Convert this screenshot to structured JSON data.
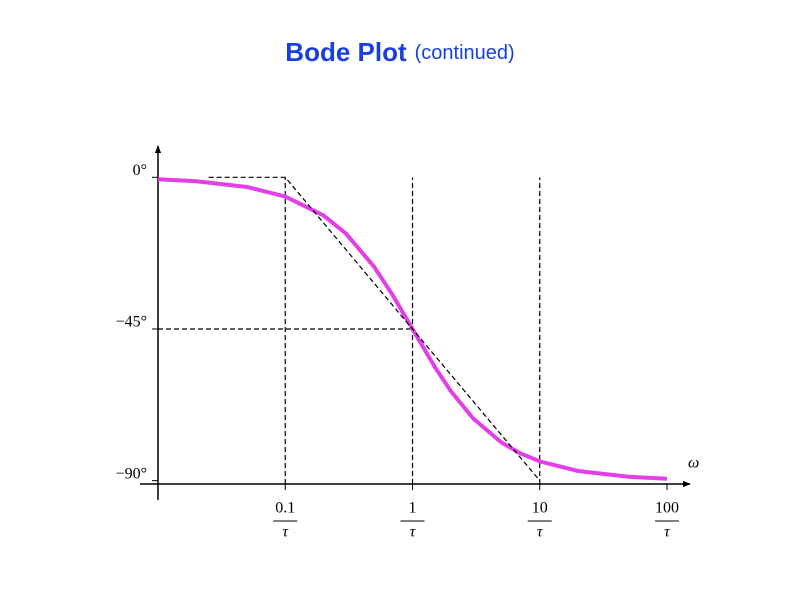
{
  "chart_data": {
    "type": "line",
    "title": "Bode Plot",
    "subtitle": "(continued)",
    "x_label": "ω",
    "log_x": true,
    "xlim": [
      0.01,
      100
    ],
    "xticks": [
      0.1,
      1,
      10,
      100
    ],
    "xtick_denominator": "τ",
    "ylim": [
      -91,
      9
    ],
    "yticks": [
      {
        "value": 0,
        "label": "0°"
      },
      {
        "value": -45,
        "label": "−45°"
      },
      {
        "value": -90,
        "label": "−90°"
      }
    ],
    "series": [
      {
        "color": "#e43ee8",
        "dashed": false,
        "x": [
          0.01,
          0.02,
          0.05,
          0.1,
          0.2,
          0.3,
          0.5,
          0.7,
          1,
          1.5,
          2,
          3,
          5,
          7,
          10,
          20,
          50,
          100
        ],
        "values": [
          -0.57,
          -1.15,
          -2.86,
          -5.71,
          -11.31,
          -16.7,
          -26.57,
          -34.99,
          -45,
          -56.31,
          -63.43,
          -71.57,
          -78.69,
          -81.87,
          -84.29,
          -87.14,
          -88.85,
          -89.43
        ]
      },
      {
        "color": "#000000",
        "dashed": true,
        "x": [
          0.025,
          0.1,
          10
        ],
        "values": [
          0,
          0,
          -90
        ]
      }
    ],
    "vlines": [
      0.1,
      1,
      10
    ],
    "vline_top": 0,
    "hline": {
      "y": -45,
      "x_end": 1
    }
  }
}
